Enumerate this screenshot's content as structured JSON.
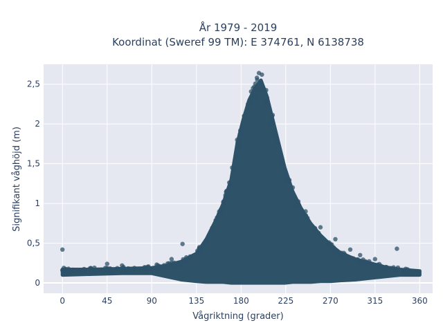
{
  "chart_data": {
    "type": "scatter",
    "title_line1": "År 1979 - 2019",
    "title_line2": "Koordinat (Sweref 99 TM): E 374761, N 6138738",
    "xlabel": "Vågriktning (grader)",
    "ylabel": "Signifikant våghöjd (m)",
    "xlim": [
      -19,
      373
    ],
    "ylim": [
      -0.13,
      2.75
    ],
    "xticks": [
      0,
      45,
      90,
      135,
      180,
      225,
      270,
      315,
      360
    ],
    "xtick_labels": [
      "0",
      "45",
      "90",
      "135",
      "180",
      "225",
      "270",
      "315",
      "360"
    ],
    "yticks": [
      0,
      0.5,
      1,
      1.5,
      2,
      2.5
    ],
    "ytick_labels": [
      "0",
      "0,5",
      "1",
      "1,5",
      "2",
      "2,5"
    ],
    "grid": true,
    "legend": "none",
    "marker_color": "#2e5268",
    "plot_background": "#e5e8f1",
    "envelope": {
      "x": [
        0,
        30,
        60,
        90,
        105,
        120,
        135,
        145,
        155,
        162,
        170,
        176,
        182,
        188,
        194,
        200,
        206,
        212,
        218,
        224,
        232,
        240,
        250,
        260,
        270,
        280,
        295,
        310,
        325,
        340,
        360
      ],
      "upper": [
        0.17,
        0.17,
        0.18,
        0.19,
        0.22,
        0.27,
        0.37,
        0.55,
        0.8,
        1.0,
        1.3,
        1.75,
        2.05,
        2.3,
        2.45,
        2.55,
        2.35,
        2.05,
        1.75,
        1.45,
        1.15,
        0.95,
        0.75,
        0.6,
        0.48,
        0.38,
        0.3,
        0.25,
        0.2,
        0.17,
        0.15
      ],
      "lower": [
        0.1,
        0.11,
        0.12,
        0.12,
        0.08,
        0.04,
        0.02,
        0.01,
        0.01,
        0.01,
        0.0,
        0.0,
        0.0,
        0.0,
        0.0,
        0.0,
        0.0,
        0.0,
        0.0,
        0.0,
        0.01,
        0.01,
        0.01,
        0.02,
        0.02,
        0.03,
        0.04,
        0.06,
        0.08,
        0.1,
        0.1
      ]
    },
    "points": [
      [
        0,
        0.42
      ],
      [
        337,
        0.43
      ],
      [
        121,
        0.49
      ],
      [
        198,
        2.64
      ],
      [
        201,
        2.62
      ],
      [
        196,
        2.58
      ],
      [
        192,
        2.45
      ],
      [
        205,
        2.28
      ],
      [
        187,
        2.25
      ],
      [
        210,
        2.0
      ],
      [
        183,
        2.1
      ],
      [
        215,
        1.85
      ],
      [
        176,
        1.8
      ],
      [
        220,
        1.55
      ],
      [
        171,
        1.45
      ],
      [
        232,
        1.2
      ],
      [
        165,
        1.15
      ],
      [
        245,
        0.9
      ],
      [
        158,
        0.85
      ],
      [
        260,
        0.7
      ],
      [
        148,
        0.6
      ],
      [
        275,
        0.55
      ],
      [
        138,
        0.45
      ],
      [
        290,
        0.42
      ],
      [
        300,
        0.35
      ],
      [
        315,
        0.3
      ],
      [
        45,
        0.24
      ],
      [
        60,
        0.22
      ],
      [
        95,
        0.23
      ],
      [
        110,
        0.3
      ]
    ]
  }
}
